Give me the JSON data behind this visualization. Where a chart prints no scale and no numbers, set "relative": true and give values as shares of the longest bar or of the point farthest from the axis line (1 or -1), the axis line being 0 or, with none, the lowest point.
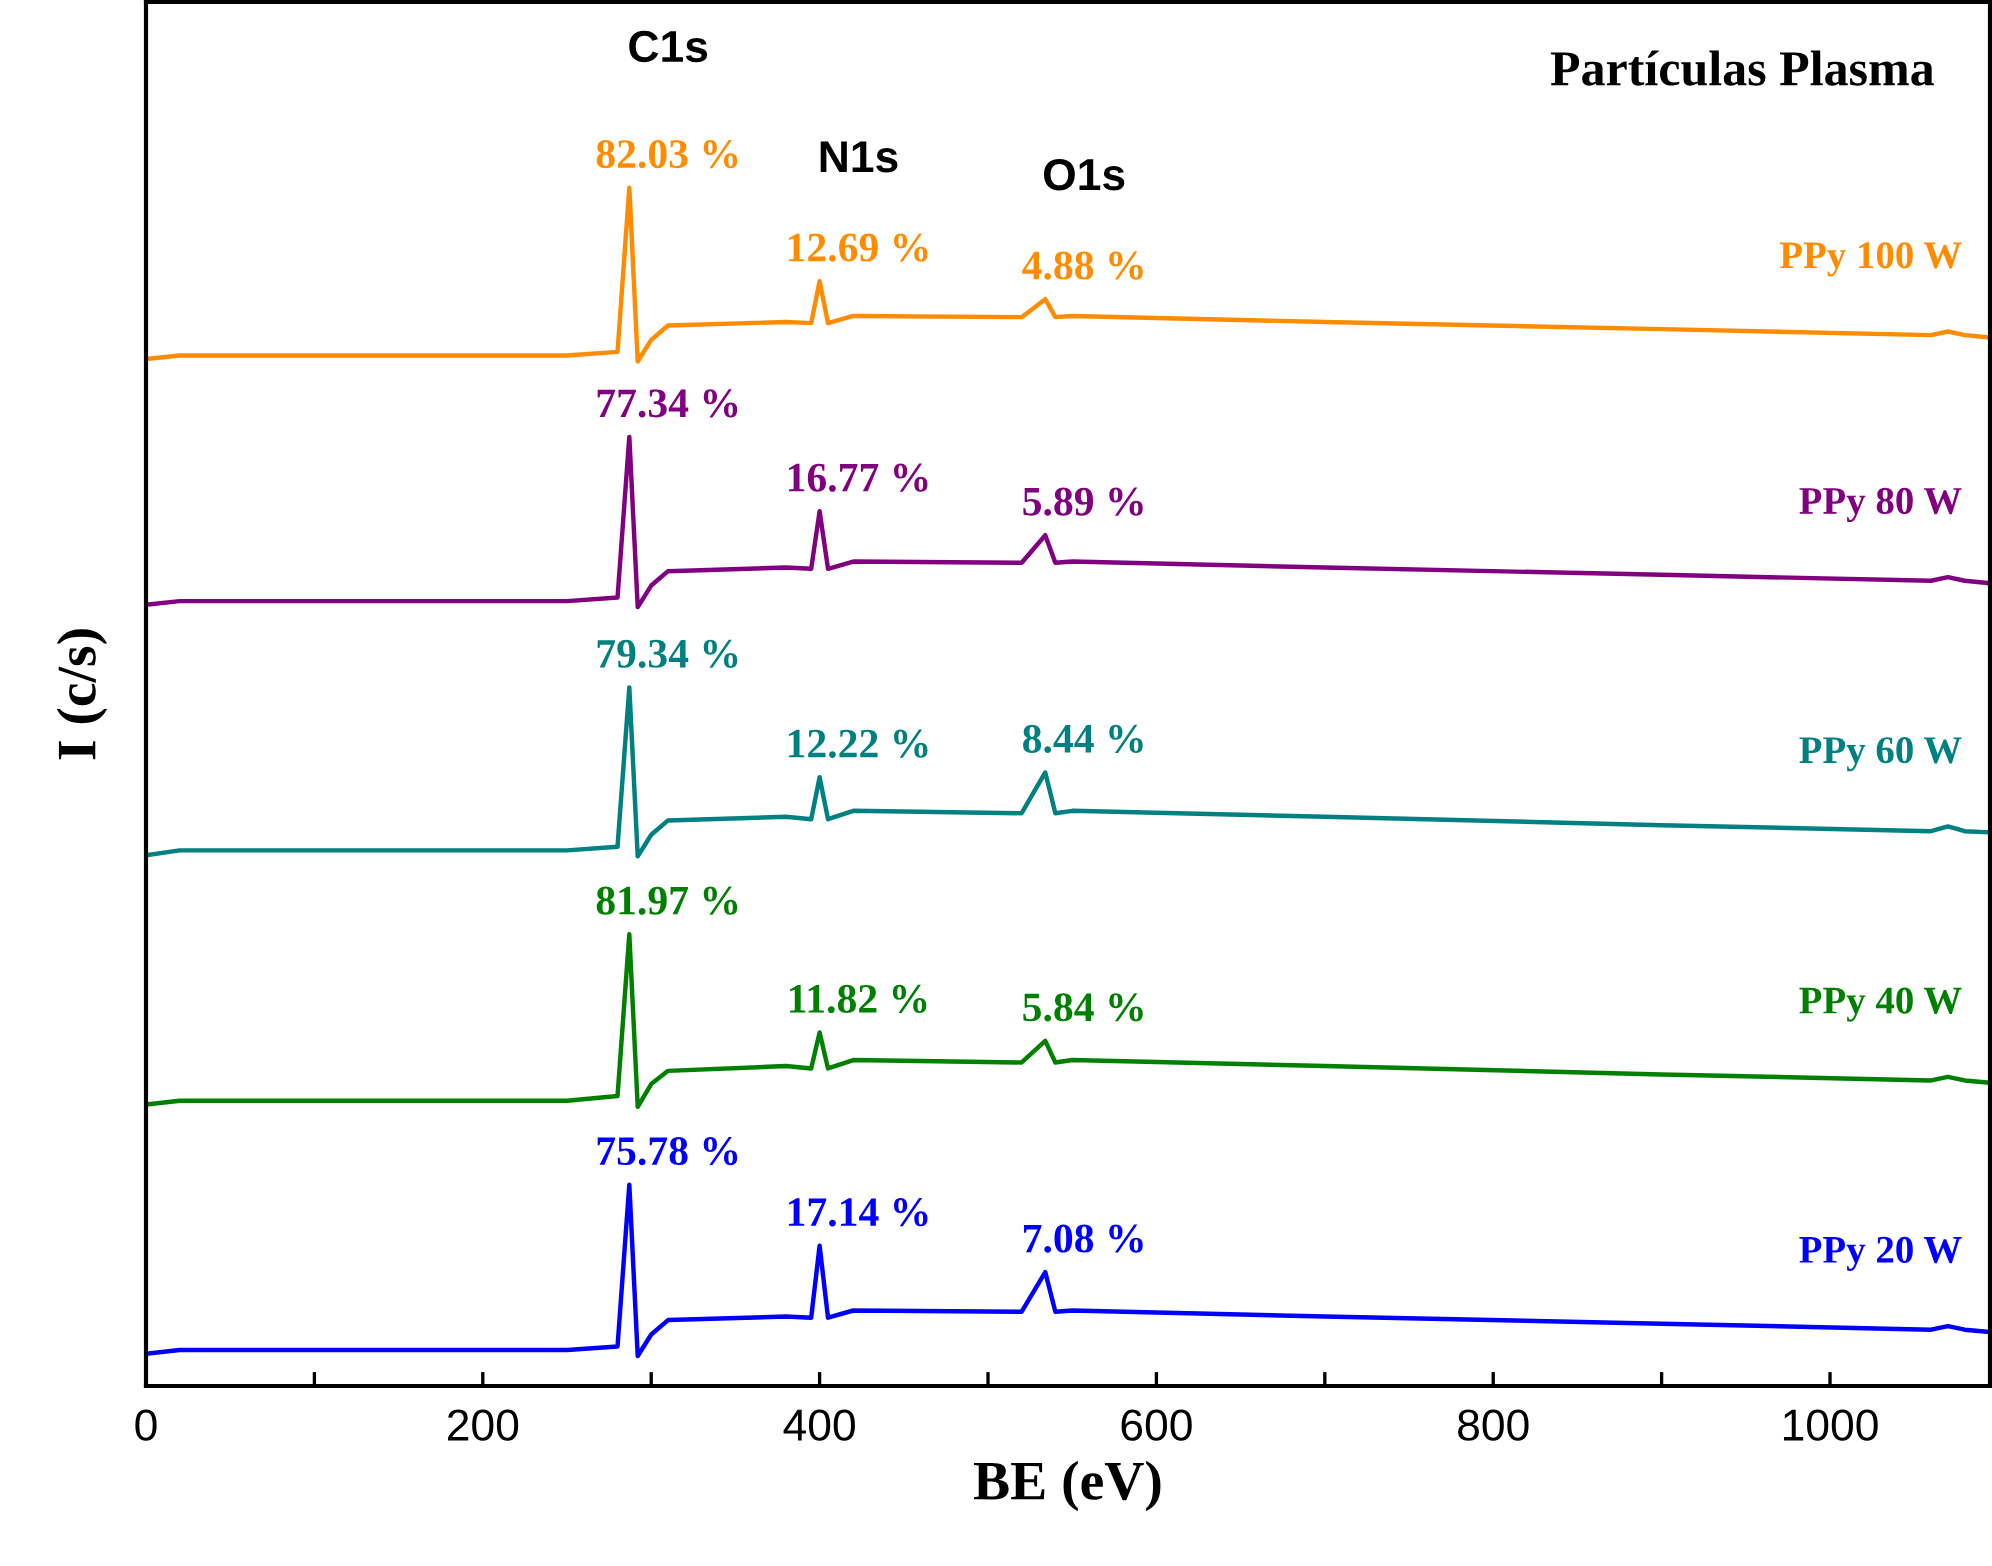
{
  "chart_data": {
    "type": "line",
    "title": "Partículas Plasma",
    "xlabel": "BE (eV)",
    "ylabel": "I (c/s)",
    "relative": true,
    "x": [
      0,
      20,
      250,
      280,
      287,
      292,
      300,
      310,
      380,
      395,
      400,
      405,
      420,
      520,
      534,
      540,
      550,
      700,
      900,
      1060,
      1070,
      1080,
      1095
    ],
    "xlim": [
      0,
      1095
    ],
    "xticks": [
      0,
      {
        "value": 100,
        "label": null
      },
      200,
      {
        "value": 300,
        "label": null
      },
      400,
      {
        "value": 500,
        "label": null
      },
      600,
      {
        "value": 700,
        "label": null
      },
      800,
      {
        "value": 900,
        "label": null
      },
      1000
    ],
    "series": [
      {
        "name": "PPy 100 W",
        "color": "#ff8c00",
        "values": [
          0.857,
          0.86,
          0.86,
          0.863,
          1.0,
          0.855,
          0.873,
          0.885,
          0.888,
          0.887,
          0.922,
          0.887,
          0.893,
          0.892,
          0.907,
          0.892,
          0.893,
          0.888,
          0.882,
          0.877,
          0.88,
          0.877,
          0.875
        ]
      },
      {
        "name": "PPy 80 W",
        "color": "#800080",
        "values": [
          0.652,
          0.655,
          0.655,
          0.658,
          0.792,
          0.65,
          0.668,
          0.68,
          0.683,
          0.682,
          0.73,
          0.682,
          0.688,
          0.687,
          0.71,
          0.687,
          0.688,
          0.683,
          0.677,
          0.672,
          0.675,
          0.672,
          0.67
        ]
      },
      {
        "name": "PPy 60 W",
        "color": "#008080",
        "values": [
          0.443,
          0.447,
          0.447,
          0.45,
          0.583,
          0.442,
          0.46,
          0.472,
          0.475,
          0.473,
          0.508,
          0.473,
          0.48,
          0.478,
          0.512,
          0.478,
          0.48,
          0.475,
          0.468,
          0.463,
          0.467,
          0.463,
          0.462
        ]
      },
      {
        "name": "PPy 40 W",
        "color": "#008000",
        "values": [
          0.235,
          0.238,
          0.238,
          0.242,
          0.377,
          0.233,
          0.252,
          0.263,
          0.267,
          0.265,
          0.295,
          0.265,
          0.272,
          0.27,
          0.288,
          0.27,
          0.272,
          0.267,
          0.26,
          0.255,
          0.258,
          0.255,
          0.253
        ]
      },
      {
        "name": "PPy 20 W",
        "color": "#0000ff",
        "values": [
          0.027,
          0.03,
          0.03,
          0.033,
          0.168,
          0.025,
          0.043,
          0.055,
          0.058,
          0.057,
          0.117,
          0.057,
          0.063,
          0.062,
          0.095,
          0.062,
          0.063,
          0.058,
          0.052,
          0.047,
          0.05,
          0.047,
          0.045
        ]
      }
    ],
    "annotations": [
      {
        "text": "82.03 %",
        "x": 287,
        "y": 1.0
      },
      {
        "text": "12.69 %",
        "x": 400,
        "y": 0.922
      },
      {
        "text": "4.88 %",
        "x": 534,
        "y": 0.907
      },
      {
        "text": "77.34 %",
        "x": 287,
        "y": 0.792
      },
      {
        "text": "16.77 %",
        "x": 400,
        "y": 0.73
      },
      {
        "text": "5.89 %",
        "x": 534,
        "y": 0.71
      },
      {
        "text": "79.34 %",
        "x": 287,
        "y": 0.583
      },
      {
        "text": "12.22 %",
        "x": 400,
        "y": 0.508
      },
      {
        "text": "8.44 %",
        "x": 534,
        "y": 0.512
      },
      {
        "text": "81.97 %",
        "x": 287,
        "y": 0.377
      },
      {
        "text": "11.82 %",
        "x": 400,
        "y": 0.295
      },
      {
        "text": "5.84 %",
        "x": 534,
        "y": 0.288
      },
      {
        "text": "75.78 %",
        "x": 287,
        "y": 0.168
      },
      {
        "text": "17.14 %",
        "x": 400,
        "y": 0.117
      },
      {
        "text": "7.08 %",
        "x": 534,
        "y": 0.095
      },
      {
        "text": "C1s",
        "x": 287,
        "y": 1.0
      },
      {
        "text": "N1s",
        "x": 400,
        "y": 0.922
      },
      {
        "text": "O1s",
        "x": 534,
        "y": 0.907
      }
    ]
  }
}
